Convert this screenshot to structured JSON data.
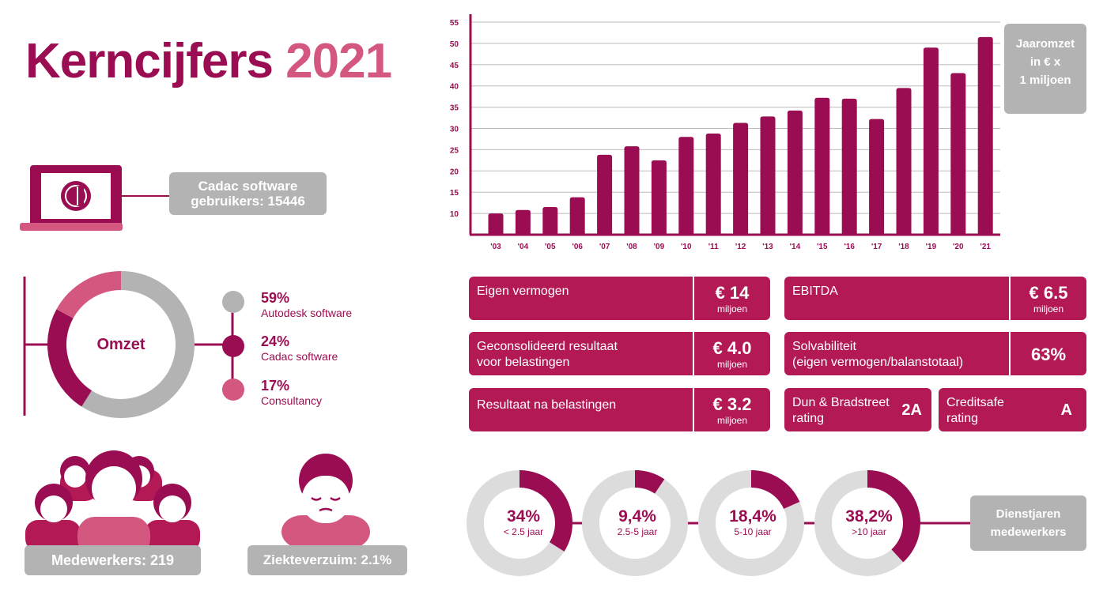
{
  "title": {
    "main": "Kerncijfers",
    "year": "2021"
  },
  "colors": {
    "primary": "#9b0d52",
    "accent": "#d3577f",
    "kpi": "#b31a55",
    "grey": "#b3b3b3",
    "light_grey": "#d9d9d9"
  },
  "users": {
    "line1": "Cadac software",
    "line2": "gebruikers: 15446",
    "icon": "laptop-logo-icon"
  },
  "omzet": {
    "center_label": "Omzet",
    "segments": [
      {
        "pct": "59%",
        "label": "Autodesk software",
        "value": 59,
        "color": "#b3b3b3"
      },
      {
        "pct": "24%",
        "label": "Cadac software",
        "value": 24,
        "color": "#9b0d52"
      },
      {
        "pct": "17%",
        "label": "Consultancy",
        "value": 17,
        "color": "#d3577f"
      }
    ]
  },
  "employees": {
    "label": "Medewerkers: 219",
    "icon": "people-group-icon"
  },
  "absence": {
    "label": "Ziekteverzuim: 2.1%",
    "icon": "sick-person-icon"
  },
  "chart_data": {
    "type": "bar",
    "legend_box": [
      "Jaaromzet",
      "in € x",
      "1 miljoen"
    ],
    "categories": [
      "'03",
      "'04",
      "'05",
      "'06",
      "'07",
      "'08",
      "'09",
      "'10",
      "'11",
      "'12",
      "'13",
      "'14",
      "'15",
      "'16",
      "'17",
      "'18",
      "'19",
      "'20",
      "'21"
    ],
    "values": [
      10,
      10.8,
      11.5,
      13.8,
      23.8,
      25.8,
      22.5,
      28,
      28.8,
      31.3,
      32.8,
      34.2,
      37.2,
      37,
      32.2,
      39.5,
      49,
      43,
      51.5
    ],
    "yticks": [
      "10",
      "15",
      "20",
      "25",
      "30",
      "35",
      "40",
      "45",
      "50",
      "55"
    ],
    "ylim": [
      5,
      55
    ],
    "grid": true,
    "color": "#9b0d52"
  },
  "kpis": [
    {
      "label": [
        "Eigen vermogen"
      ],
      "value": "€ 14",
      "unit": "miljoen"
    },
    {
      "label": [
        "Geconsolideerd resultaat",
        "voor belastingen"
      ],
      "value": "€ 4.0",
      "unit": "miljoen"
    },
    {
      "label": [
        "Resultaat na belastingen"
      ],
      "value": "€ 3.2",
      "unit": "miljoen"
    },
    {
      "label": [
        "EBITDA"
      ],
      "value": "€ 6.5",
      "unit": "miljoen"
    },
    {
      "label": [
        "Solvabiliteit",
        "(eigen vermogen/balanstotaal)"
      ],
      "value": "63%",
      "unit": ""
    },
    {
      "label": [
        "Dun & Bradstreet",
        "rating"
      ],
      "value": "2A",
      "unit": ""
    },
    {
      "label": [
        "Creditsafe",
        "rating"
      ],
      "value": "A",
      "unit": ""
    }
  ],
  "service_years": {
    "title": [
      "Dienstjaren",
      "medewerkers"
    ],
    "rings": [
      {
        "pct": "34%",
        "range": "< 2.5 jaar",
        "value": 34
      },
      {
        "pct": "9,4%",
        "range": "2.5-5 jaar",
        "value": 9.4
      },
      {
        "pct": "18,4%",
        "range": "5-10 jaar",
        "value": 18.4
      },
      {
        "pct": "38,2%",
        "range": ">10 jaar",
        "value": 38.2
      }
    ]
  }
}
